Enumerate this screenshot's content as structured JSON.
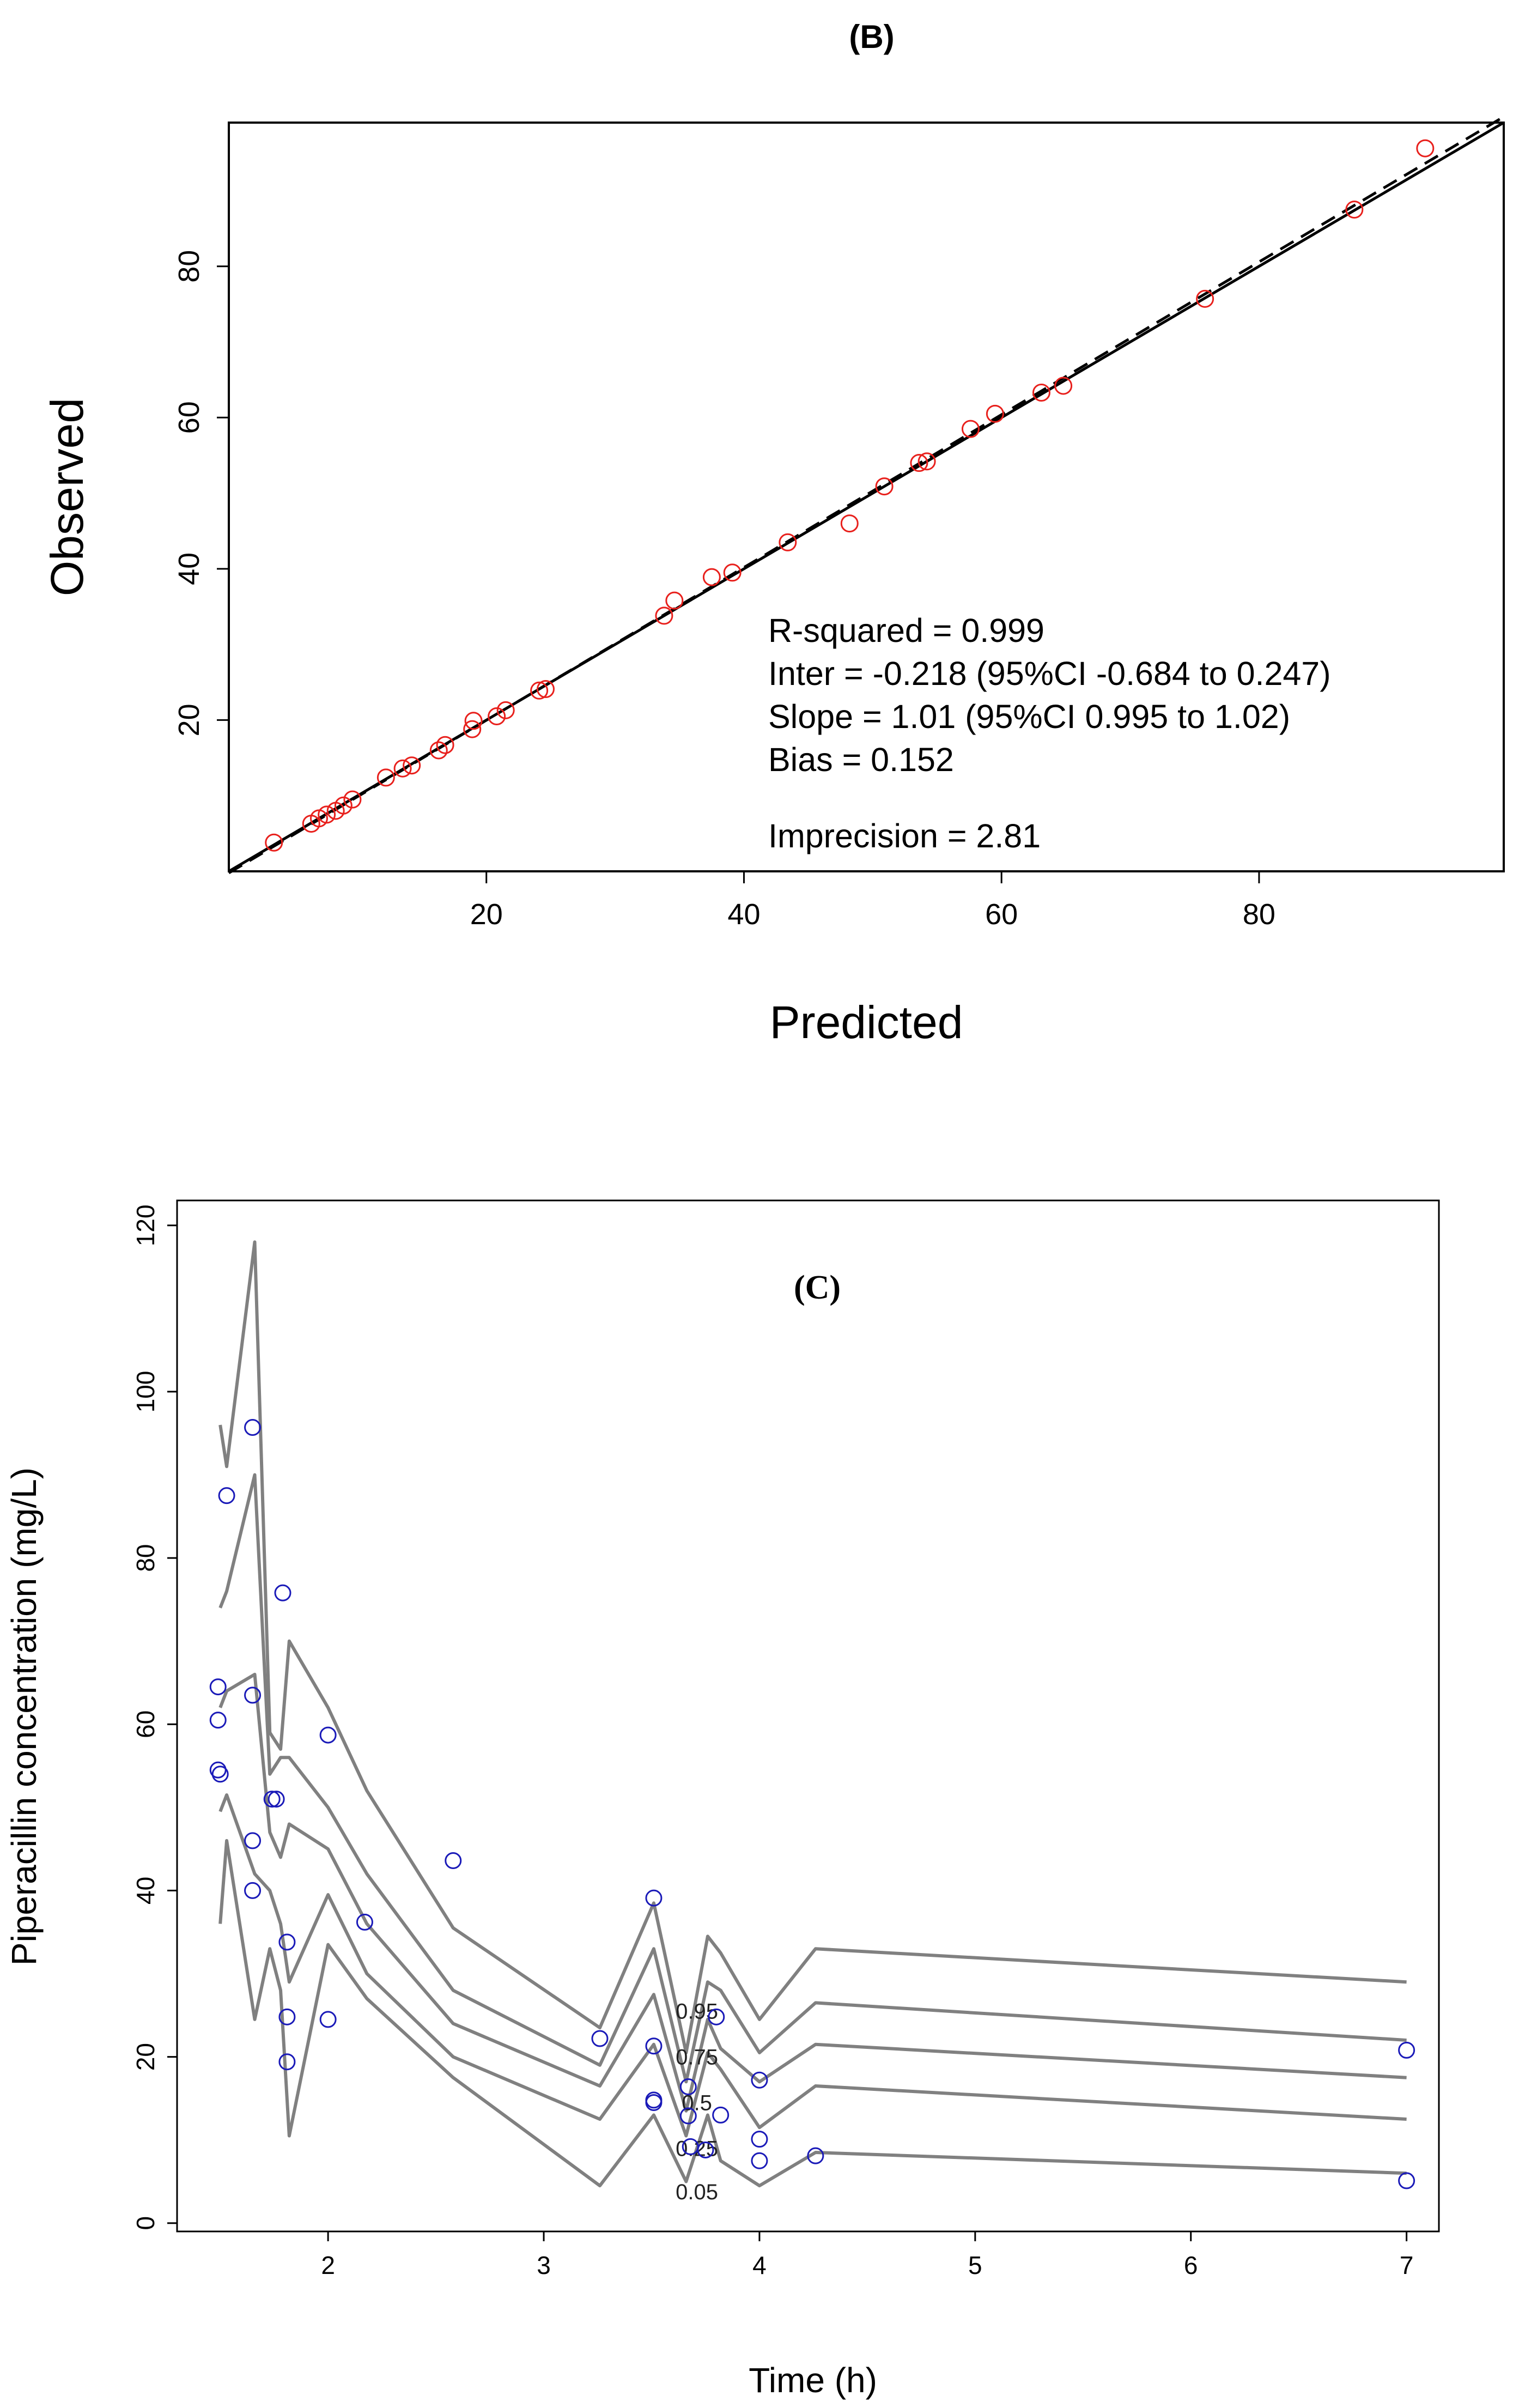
{
  "colors": {
    "b_points": "#e8201c",
    "c_points": "#1a1ab8",
    "axis": "#000000",
    "percentile_line": "#808080",
    "band_fill": "#d6d6d6"
  },
  "chart_data": [
    {
      "id": "B",
      "type": "scatter",
      "panel_label": "(B)",
      "xlabel": "Predicted",
      "ylabel": "Observed",
      "xlim": [
        0,
        99
      ],
      "ylim": [
        0,
        99
      ],
      "xticks": [
        20,
        40,
        60,
        80
      ],
      "yticks": [
        20,
        40,
        60,
        80
      ],
      "points": [
        [
          3.5,
          3.8
        ],
        [
          6.4,
          6.3
        ],
        [
          7.0,
          7.0
        ],
        [
          7.6,
          7.5
        ],
        [
          8.3,
          8.0
        ],
        [
          8.9,
          8.7
        ],
        [
          9.6,
          9.5
        ],
        [
          12.2,
          12.4
        ],
        [
          13.5,
          13.6
        ],
        [
          14.2,
          14.0
        ],
        [
          16.3,
          16.0
        ],
        [
          16.8,
          16.7
        ],
        [
          18.9,
          18.8
        ],
        [
          19.0,
          19.9
        ],
        [
          20.8,
          20.5
        ],
        [
          21.5,
          21.3
        ],
        [
          24.1,
          23.9
        ],
        [
          24.6,
          24.1
        ],
        [
          33.8,
          33.8
        ],
        [
          34.6,
          35.8
        ],
        [
          37.5,
          38.9
        ],
        [
          39.1,
          39.5
        ],
        [
          43.4,
          43.5
        ],
        [
          48.2,
          46.0
        ],
        [
          50.9,
          50.9
        ],
        [
          53.6,
          54.0
        ],
        [
          54.2,
          54.2
        ],
        [
          57.6,
          58.5
        ],
        [
          59.5,
          60.5
        ],
        [
          63.1,
          63.3
        ],
        [
          64.8,
          64.2
        ],
        [
          75.8,
          75.7
        ],
        [
          87.4,
          87.5
        ],
        [
          92.9,
          95.6
        ]
      ],
      "identity_line": {
        "intercept": 0,
        "slope": 1
      },
      "fit_line": {
        "intercept": -0.218,
        "slope": 1.01
      },
      "annotations": [
        "R-squared = 0.999",
        "Inter = -0.218 (95%CI -0.684 to 0.247)",
        "Slope = 1.01 (95%CI 0.995 to 1.02)",
        "Bias = 0.152",
        "Imprecision  = 2.81"
      ]
    },
    {
      "id": "C",
      "type": "line",
      "panel_label": "(C)",
      "xlabel": "Time (h)",
      "ylabel": "Piperacillin concentration (mg/L)",
      "xlim": [
        1.3,
        7.15
      ],
      "ylim": [
        -1,
        123
      ],
      "xticks": [
        2,
        3,
        4,
        5,
        6,
        7
      ],
      "yticks": [
        0,
        20,
        40,
        60,
        80,
        100,
        120
      ],
      "x": [
        1.5,
        1.53,
        1.66,
        1.73,
        1.78,
        1.82,
        2.0,
        2.18,
        2.58,
        3.26,
        3.51,
        3.66,
        3.76,
        3.82,
        4.0,
        4.26,
        7.0
      ],
      "series": [
        {
          "name": "0.95",
          "values": [
            96,
            91,
            118,
            59,
            57,
            70,
            62,
            52,
            35.5,
            23.5,
            38.5,
            20.5,
            34.5,
            32.5,
            24.5,
            33,
            29
          ]
        },
        {
          "name": "0.75",
          "values": [
            74,
            76,
            90,
            54,
            56,
            56,
            50,
            42,
            28,
            19,
            33,
            17,
            29,
            28,
            20.5,
            26.5,
            22
          ]
        },
        {
          "name": "0.5",
          "values": [
            62,
            64,
            66,
            47,
            44,
            48,
            45,
            36,
            24,
            16.5,
            27.5,
            13.5,
            24.5,
            21,
            17,
            21.5,
            17.5
          ]
        },
        {
          "name": "0.25",
          "values": [
            49.5,
            51.5,
            42,
            40,
            36,
            29,
            39.5,
            30,
            20,
            12.5,
            21.5,
            10.5,
            20.5,
            18.5,
            11.5,
            16.5,
            12.5
          ]
        },
        {
          "name": "0.05",
          "values": [
            36,
            46,
            24.5,
            33,
            28,
            10.5,
            33.5,
            27,
            17.5,
            4.5,
            13,
            5,
            13,
            7.5,
            4.5,
            8.5,
            6
          ]
        }
      ],
      "band_half_widths": [
        0,
        0,
        0,
        0,
        0,
        0,
        0,
        0,
        0,
        0,
        0,
        0,
        0,
        0,
        0,
        0,
        0
      ],
      "percentile_labels": [
        {
          "text": "0.95",
          "x": 3.71,
          "y": 25.5
        },
        {
          "text": "0.75",
          "x": 3.71,
          "y": 20.0
        },
        {
          "text": "0.5",
          "x": 3.71,
          "y": 14.5
        },
        {
          "text": "0.25",
          "x": 3.71,
          "y": 9.0
        },
        {
          "text": "0.05",
          "x": 3.71,
          "y": 3.8
        }
      ],
      "points": [
        [
          1.49,
          64.5
        ],
        [
          1.49,
          60.5
        ],
        [
          1.49,
          54.5
        ],
        [
          1.5,
          54.0
        ],
        [
          1.53,
          87.5
        ],
        [
          1.65,
          95.7
        ],
        [
          1.65,
          63.5
        ],
        [
          1.65,
          46.0
        ],
        [
          1.65,
          40.0
        ],
        [
          1.74,
          51.0
        ],
        [
          1.76,
          51.0
        ],
        [
          1.79,
          75.8
        ],
        [
          1.81,
          33.8
        ],
        [
          1.81,
          24.8
        ],
        [
          1.81,
          19.4
        ],
        [
          2.0,
          58.7
        ],
        [
          2.0,
          24.5
        ],
        [
          2.17,
          36.2
        ],
        [
          2.58,
          43.6
        ],
        [
          3.26,
          22.2
        ],
        [
          3.51,
          39.1
        ],
        [
          3.51,
          21.3
        ],
        [
          3.51,
          14.8
        ],
        [
          3.51,
          14.5
        ],
        [
          3.67,
          16.4
        ],
        [
          3.67,
          12.9
        ],
        [
          3.68,
          9.2
        ],
        [
          3.75,
          8.8
        ],
        [
          3.8,
          24.8
        ],
        [
          3.82,
          13.0
        ],
        [
          4.0,
          17.2
        ],
        [
          4.0,
          10.1
        ],
        [
          4.0,
          7.5
        ],
        [
          4.26,
          8.1
        ],
        [
          7.0,
          20.8
        ],
        [
          7.0,
          5.1
        ]
      ]
    }
  ]
}
